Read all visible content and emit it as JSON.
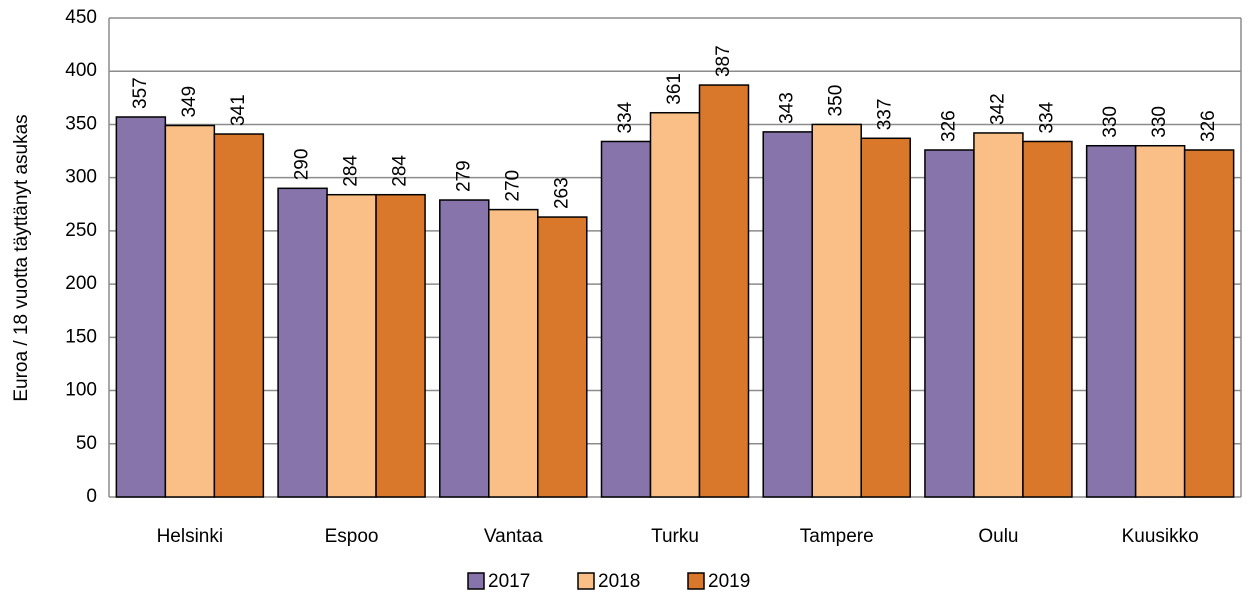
{
  "chart_data": {
    "type": "bar",
    "y_label": "Euroa / 18 vuotta täyttänyt asukas",
    "categories": [
      "Helsinki",
      "Espoo",
      "Vantaa",
      "Turku",
      "Tampere",
      "Oulu",
      "Kuusikko"
    ],
    "series": [
      {
        "name": "2017",
        "color": "#8674aa",
        "values": [
          357,
          290,
          279,
          334,
          343,
          326,
          330
        ]
      },
      {
        "name": "2018",
        "color": "#f9bf86",
        "values": [
          349,
          284,
          270,
          361,
          350,
          342,
          330
        ]
      },
      {
        "name": "2019",
        "color": "#d9782b",
        "values": [
          341,
          284,
          263,
          387,
          337,
          334,
          326
        ]
      }
    ],
    "ylim": [
      0,
      450
    ],
    "yticks": [
      0,
      50,
      100,
      150,
      200,
      250,
      300,
      350,
      400,
      450
    ],
    "grid": true,
    "legend": "bottom"
  }
}
